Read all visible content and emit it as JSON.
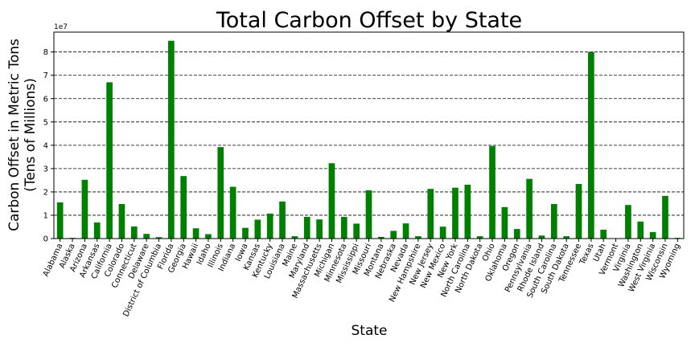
{
  "chart_data": {
    "type": "bar",
    "title": "Total Carbon Offset by State",
    "xlabel": "State",
    "ylabel_line1": "Carbon Offset in Metric Tons",
    "ylabel_line2": "(Tens of Millions)",
    "y_offset_text": "1e7",
    "ylim": [
      0,
      88500000
    ],
    "yticks": [
      0,
      1,
      2,
      3,
      4,
      5,
      6,
      7,
      8
    ],
    "yscale": 10000000,
    "grid": "y-dashed",
    "bar_color": "#008000",
    "categories": [
      "Alabama",
      "Alaska",
      "Arizona",
      "Arkansas",
      "California",
      "Colorado",
      "Connecticut",
      "Delaware",
      "District of Columbia",
      "Florida",
      "Georgia",
      "Hawaii",
      "Idaho",
      "Illinois",
      "Indiana",
      "Iowa",
      "Kansas",
      "Kentucky",
      "Louisiana",
      "Maine",
      "Maryland",
      "Massachusetts",
      "Michigan",
      "Minnesota",
      "Mississippi",
      "Missouri",
      "Montana",
      "Nebraska",
      "Nevada",
      "New Hampshire",
      "New Jersey",
      "New Mexico",
      "New York",
      "North Carolina",
      "North Dakota",
      "Ohio",
      "Oklahoma",
      "Oregon",
      "Pennsylvania",
      "Rhode Island",
      "South Carolina",
      "South Dakota",
      "Tennessee",
      "Texas",
      "Utah",
      "Vermont",
      "Virginia",
      "Washington",
      "West Virginia",
      "Wisconsin",
      "Wyoming"
    ],
    "values": [
      15500000,
      300000,
      25200000,
      6900000,
      67000000,
      14800000,
      5200000,
      2000000,
      600000,
      84800000,
      26800000,
      4400000,
      1900000,
      39200000,
      22200000,
      4600000,
      8100000,
      10700000,
      15900000,
      1000000,
      9300000,
      8200000,
      32300000,
      9300000,
      6400000,
      20700000,
      700000,
      3300000,
      6500000,
      1000000,
      21300000,
      5100000,
      21800000,
      23100000,
      1000000,
      39700000,
      13500000,
      4100000,
      25600000,
      1300000,
      14800000,
      1000000,
      23400000,
      80000000,
      3800000,
      100000,
      14400000,
      7300000,
      2800000,
      18300000,
      300000
    ]
  }
}
